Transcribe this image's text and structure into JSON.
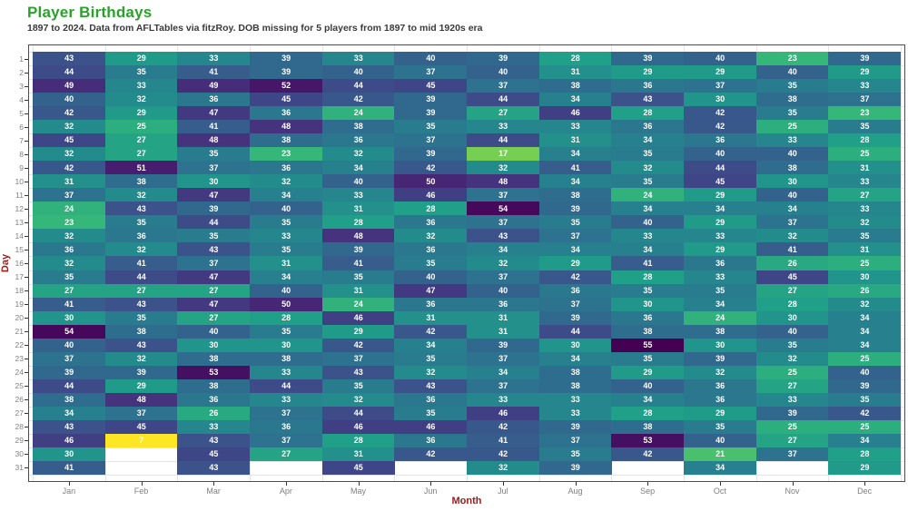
{
  "header": {
    "title": "Player Birthdays",
    "subtitle": "1897 to 2024. Data from AFLTables via fitzRoy. DOB missing for 5 players from 1897 to mid 1920s era"
  },
  "colors": {
    "title": "#2ca02c",
    "subtitle": "#3a3a3a",
    "axis_title": "#a11b1b",
    "tick_label": "#7f7f7f",
    "tick_mark": "#333333",
    "panel_border": "#4d4d4d",
    "gridline": "#e4e4e4",
    "cell_text": "#ffffff",
    "background": "#ffffff"
  },
  "chart_data": {
    "type": "heatmap",
    "title": "Player Birthdays",
    "subtitle": "1897 to 2024. Data from AFLTables via fitzRoy. DOB missing for 5 players from 1897 to mid 1920s era",
    "xlabel": "Month",
    "ylabel": "Day",
    "legend": "none",
    "grid": true,
    "color_scale": {
      "name": "viridis",
      "direction": "reversed",
      "domain": [
        7,
        55
      ],
      "stops": [
        "#440154",
        "#482878",
        "#3e4a89",
        "#31688e",
        "#26828e",
        "#1f9e89",
        "#35b779",
        "#6dcd59",
        "#b4de2c",
        "#fde725"
      ]
    },
    "x_categories": [
      "Jan",
      "Feb",
      "Mar",
      "Apr",
      "May",
      "Jun",
      "Jul",
      "Aug",
      "Sep",
      "Oct",
      "Nov",
      "Dec"
    ],
    "y_categories": [
      1,
      2,
      3,
      4,
      5,
      6,
      7,
      8,
      9,
      10,
      11,
      12,
      13,
      14,
      15,
      16,
      17,
      18,
      19,
      20,
      21,
      22,
      23,
      24,
      25,
      26,
      27,
      28,
      29,
      30,
      31
    ],
    "values": [
      [
        43,
        29,
        33,
        39,
        33,
        40,
        39,
        28,
        39,
        40,
        23,
        39
      ],
      [
        44,
        35,
        41,
        39,
        40,
        37,
        40,
        31,
        29,
        29,
        40,
        29
      ],
      [
        49,
        33,
        49,
        52,
        44,
        45,
        37,
        38,
        36,
        37,
        35,
        33
      ],
      [
        40,
        32,
        36,
        45,
        42,
        39,
        44,
        34,
        43,
        30,
        38,
        37
      ],
      [
        42,
        29,
        47,
        36,
        24,
        39,
        27,
        46,
        28,
        42,
        35,
        23
      ],
      [
        32,
        25,
        41,
        48,
        38,
        35,
        33,
        33,
        36,
        42,
        25,
        35
      ],
      [
        45,
        27,
        48,
        38,
        36,
        37,
        44,
        31,
        34,
        36,
        33,
        28
      ],
      [
        32,
        27,
        35,
        23,
        32,
        39,
        17,
        34,
        35,
        40,
        40,
        25
      ],
      [
        42,
        51,
        37,
        36,
        34,
        42,
        32,
        41,
        32,
        44,
        38,
        31
      ],
      [
        31,
        38,
        30,
        32,
        40,
        50,
        48,
        34,
        35,
        45,
        30,
        33
      ],
      [
        37,
        32,
        47,
        34,
        33,
        46,
        37,
        38,
        24,
        29,
        40,
        27
      ],
      [
        24,
        43,
        39,
        40,
        31,
        28,
        54,
        39,
        34,
        34,
        34,
        33
      ],
      [
        23,
        35,
        44,
        35,
        28,
        36,
        37,
        35,
        40,
        29,
        37,
        32
      ],
      [
        32,
        36,
        35,
        33,
        48,
        32,
        43,
        37,
        33,
        33,
        32,
        35
      ],
      [
        36,
        32,
        43,
        35,
        39,
        36,
        34,
        34,
        34,
        29,
        41,
        31
      ],
      [
        32,
        41,
        37,
        31,
        41,
        35,
        32,
        29,
        41,
        36,
        26,
        25
      ],
      [
        35,
        44,
        47,
        34,
        35,
        40,
        37,
        42,
        28,
        33,
        45,
        30
      ],
      [
        27,
        27,
        27,
        40,
        31,
        47,
        40,
        36,
        35,
        35,
        27,
        26
      ],
      [
        41,
        43,
        47,
        50,
        24,
        36,
        36,
        37,
        30,
        34,
        28,
        32
      ],
      [
        30,
        35,
        27,
        28,
        46,
        31,
        31,
        39,
        36,
        24,
        30,
        34
      ],
      [
        54,
        38,
        40,
        35,
        29,
        42,
        31,
        44,
        38,
        38,
        40,
        34
      ],
      [
        40,
        43,
        30,
        30,
        42,
        34,
        39,
        30,
        55,
        30,
        35,
        34
      ],
      [
        37,
        32,
        38,
        38,
        37,
        35,
        37,
        34,
        35,
        39,
        32,
        25
      ],
      [
        39,
        39,
        53,
        33,
        43,
        32,
        34,
        38,
        29,
        32,
        25,
        40
      ],
      [
        44,
        29,
        38,
        44,
        35,
        43,
        37,
        38,
        40,
        36,
        27,
        39
      ],
      [
        38,
        48,
        36,
        33,
        32,
        36,
        33,
        33,
        34,
        36,
        33,
        35
      ],
      [
        34,
        37,
        26,
        37,
        44,
        35,
        46,
        33,
        28,
        29,
        39,
        42
      ],
      [
        43,
        45,
        33,
        36,
        46,
        46,
        42,
        39,
        38,
        35,
        25,
        25
      ],
      [
        46,
        7,
        43,
        37,
        28,
        36,
        41,
        37,
        53,
        40,
        27,
        34
      ],
      [
        30,
        null,
        45,
        27,
        31,
        42,
        42,
        35,
        42,
        21,
        37,
        28
      ],
      [
        41,
        null,
        43,
        null,
        45,
        null,
        32,
        39,
        null,
        34,
        null,
        29
      ]
    ]
  }
}
